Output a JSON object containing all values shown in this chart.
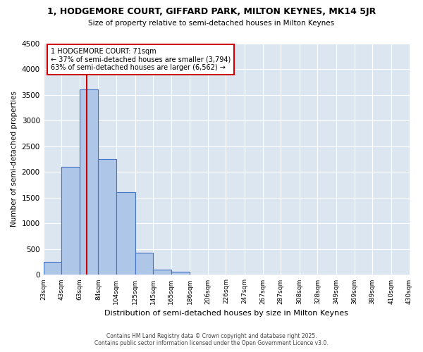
{
  "title_line1": "1, HODGEMORE COURT, GIFFARD PARK, MILTON KEYNES, MK14 5JR",
  "title_line2": "Size of property relative to semi-detached houses in Milton Keynes",
  "xlabel": "Distribution of semi-detached houses by size in Milton Keynes",
  "ylabel": "Number of semi-detached properties",
  "footnote1": "Contains HM Land Registry data © Crown copyright and database right 2025.",
  "footnote2": "Contains public sector information licensed under the Open Government Licence v3.0.",
  "annotation_title": "1 HODGEMORE COURT: 71sqm",
  "annotation_line1": "← 37% of semi-detached houses are smaller (3,794)",
  "annotation_line2": "63% of semi-detached houses are larger (6,562) →",
  "property_size": 71,
  "bar_edges": [
    23,
    43,
    63,
    84,
    104,
    125,
    145,
    165,
    186,
    206,
    226,
    247,
    267,
    287,
    308,
    328,
    349,
    369,
    389,
    410,
    430
  ],
  "bar_heights": [
    250,
    2100,
    3600,
    2250,
    1600,
    430,
    100,
    55,
    0,
    0,
    0,
    0,
    0,
    0,
    0,
    0,
    0,
    0,
    0,
    0
  ],
  "bar_color": "#aec6e8",
  "bar_edge_color": "#4472c4",
  "vline_color": "#cc0000",
  "vline_x": 71,
  "annotation_box_color": "#cc0000",
  "ylim": [
    0,
    4500
  ],
  "yticks": [
    0,
    500,
    1000,
    1500,
    2000,
    2500,
    3000,
    3500,
    4000,
    4500
  ],
  "fig_bg_color": "#ffffff",
  "plot_bg_color": "#dce6f1",
  "grid_color": "#ffffff",
  "title_fontsize": 9,
  "subtitle_fontsize": 8,
  "tick_labels": [
    "23sqm",
    "43sqm",
    "63sqm",
    "84sqm",
    "104sqm",
    "125sqm",
    "145sqm",
    "165sqm",
    "186sqm",
    "206sqm",
    "226sqm",
    "247sqm",
    "267sqm",
    "287sqm",
    "308sqm",
    "328sqm",
    "349sqm",
    "369sqm",
    "389sqm",
    "410sqm",
    "430sqm"
  ]
}
